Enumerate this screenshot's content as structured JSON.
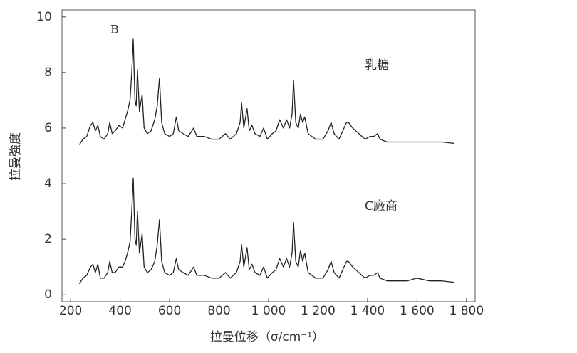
{
  "chart_data": {
    "type": "line",
    "annotations": [
      "B",
      "乳糖",
      "C廠商"
    ],
    "xlabel": "拉曼位移（σ/cm⁻¹）",
    "ylabel": "拉曼強度",
    "xlim": [
      165,
      1835
    ],
    "ylim": [
      -0.25,
      10.25
    ],
    "xticks": [
      200,
      400,
      600,
      800,
      {
        "value": 1000,
        "label": "1 000"
      },
      {
        "value": 1200,
        "label": "1 200"
      },
      {
        "value": 1400,
        "label": "1 400"
      },
      {
        "value": 1600,
        "label": "1 600"
      },
      {
        "value": 1800,
        "label": "1 800"
      }
    ],
    "yticks": [
      0,
      2,
      4,
      6,
      8,
      10
    ],
    "grid": false,
    "x": [
      235,
      250,
      265,
      280,
      290,
      300,
      310,
      320,
      335,
      350,
      358,
      368,
      380,
      395,
      410,
      420,
      430,
      440,
      447,
      453,
      460,
      465,
      470,
      478,
      489,
      497,
      510,
      525,
      540,
      550,
      559,
      568,
      580,
      600,
      615,
      627,
      637,
      655,
      675,
      690,
      697,
      710,
      740,
      770,
      800,
      826,
      845,
      870,
      885,
      891,
      900,
      913,
      922,
      933,
      945,
      965,
      980,
      995,
      1015,
      1030,
      1045,
      1060,
      1073,
      1085,
      1095,
      1101,
      1110,
      1120,
      1129,
      1138,
      1146,
      1160,
      1190,
      1220,
      1240,
      1253,
      1265,
      1285,
      1300,
      1315,
      1323,
      1340,
      1365,
      1390,
      1410,
      1425,
      1441,
      1450,
      1480,
      1520,
      1560,
      1600,
      1650,
      1700,
      1750
    ],
    "series": [
      {
        "color": "#222222",
        "values": [
          5.4,
          5.6,
          5.7,
          6.1,
          6.2,
          5.9,
          6.1,
          5.7,
          5.6,
          5.8,
          6.2,
          5.8,
          5.9,
          6.1,
          6.0,
          6.3,
          6.6,
          7.0,
          8.0,
          9.2,
          7.0,
          6.8,
          8.1,
          6.6,
          7.2,
          6.0,
          5.8,
          5.9,
          6.3,
          6.8,
          7.8,
          6.2,
          5.8,
          5.7,
          5.8,
          6.4,
          5.9,
          5.8,
          5.7,
          5.9,
          6.0,
          5.7,
          5.7,
          5.6,
          5.6,
          5.8,
          5.6,
          5.8,
          6.2,
          6.9,
          6.0,
          6.7,
          5.9,
          6.1,
          5.8,
          5.7,
          6.0,
          5.6,
          5.8,
          5.9,
          6.3,
          6.0,
          6.3,
          6.0,
          6.5,
          7.7,
          6.2,
          6.0,
          6.5,
          6.2,
          6.4,
          5.8,
          5.6,
          5.6,
          5.9,
          6.2,
          5.8,
          5.6,
          5.9,
          6.2,
          6.2,
          6.0,
          5.8,
          5.6,
          5.7,
          5.7,
          5.8,
          5.6,
          5.5,
          5.5,
          5.5,
          5.5,
          5.5,
          5.5,
          5.45
        ]
      },
      {
        "color": "#222222",
        "values": [
          0.4,
          0.6,
          0.7,
          1.0,
          1.1,
          0.8,
          1.1,
          0.6,
          0.6,
          0.8,
          1.2,
          0.8,
          0.8,
          1.0,
          1.0,
          1.2,
          1.5,
          1.9,
          3.0,
          4.2,
          2.0,
          1.8,
          3.0,
          1.5,
          2.2,
          1.0,
          0.8,
          0.9,
          1.2,
          1.8,
          2.7,
          1.2,
          0.8,
          0.7,
          0.8,
          1.3,
          0.9,
          0.8,
          0.7,
          0.9,
          1.0,
          0.7,
          0.7,
          0.6,
          0.6,
          0.8,
          0.6,
          0.8,
          1.2,
          1.8,
          1.0,
          1.7,
          0.9,
          1.1,
          0.8,
          0.7,
          1.0,
          0.6,
          0.8,
          0.9,
          1.3,
          1.0,
          1.3,
          1.0,
          1.5,
          2.6,
          1.2,
          1.0,
          1.6,
          1.2,
          1.5,
          0.8,
          0.6,
          0.6,
          0.9,
          1.2,
          0.8,
          0.6,
          0.9,
          1.2,
          1.2,
          1.0,
          0.8,
          0.6,
          0.7,
          0.7,
          0.8,
          0.6,
          0.5,
          0.5,
          0.5,
          0.6,
          0.5,
          0.5,
          0.45
        ]
      }
    ]
  }
}
